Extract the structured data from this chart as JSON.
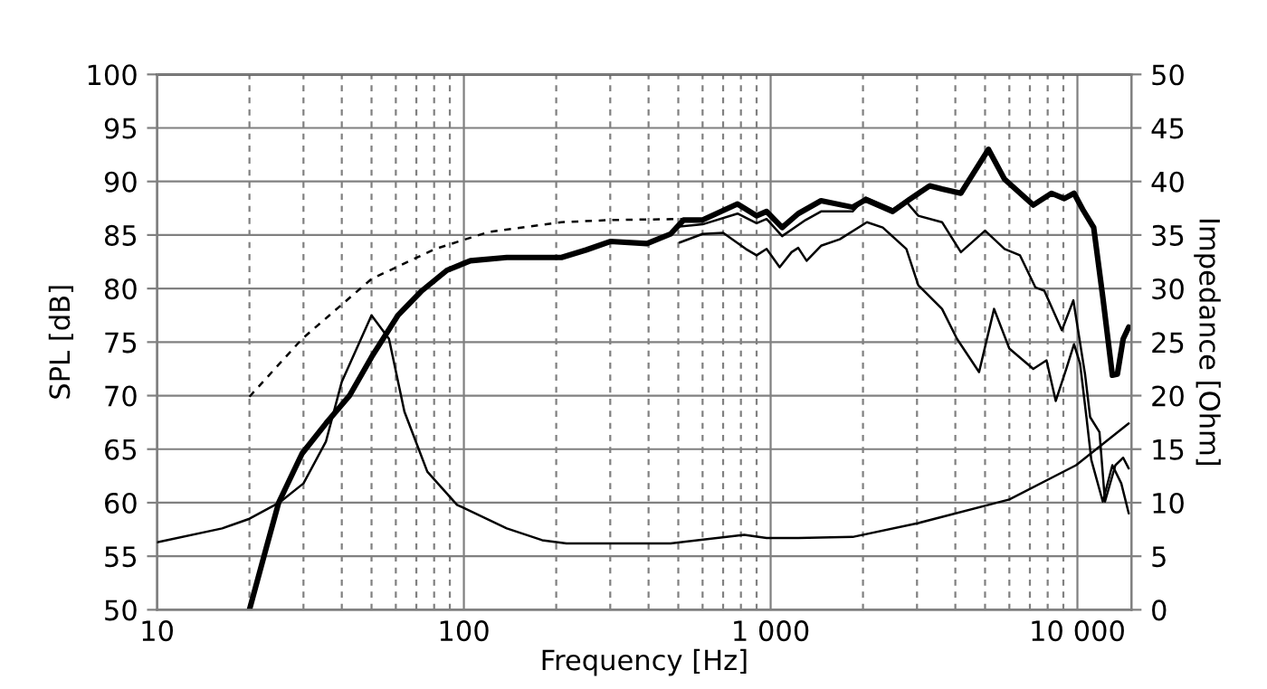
{
  "chart_data": {
    "type": "line",
    "xlabel": "Frequency [Hz]",
    "ylabel": "SPL [dB]",
    "y2label": "Impedance [Ohm]",
    "log": "x",
    "grid": true,
    "xlim": [
      10,
      15000
    ],
    "xticks": [
      10,
      {
        "value": 20,
        "label": null
      },
      {
        "value": 30,
        "label": null
      },
      {
        "value": 40,
        "label": null
      },
      {
        "value": 50,
        "label": null
      },
      {
        "value": 60,
        "label": null
      },
      {
        "value": 70,
        "label": null
      },
      {
        "value": 80,
        "label": null
      },
      {
        "value": 90,
        "label": null
      },
      100,
      {
        "value": 200,
        "label": null
      },
      {
        "value": 300,
        "label": null
      },
      {
        "value": 400,
        "label": null
      },
      {
        "value": 500,
        "label": null
      },
      {
        "value": 600,
        "label": null
      },
      {
        "value": 700,
        "label": null
      },
      {
        "value": 800,
        "label": null
      },
      {
        "value": 900,
        "label": null
      },
      {
        "value": 1000,
        "label": "1 000"
      },
      {
        "value": 2000,
        "label": null
      },
      {
        "value": 3000,
        "label": null
      },
      {
        "value": 4000,
        "label": null
      },
      {
        "value": 5000,
        "label": null
      },
      {
        "value": 6000,
        "label": null
      },
      {
        "value": 7000,
        "label": null
      },
      {
        "value": 8000,
        "label": null
      },
      {
        "value": 9000,
        "label": null
      },
      {
        "value": 10000,
        "label": "10 000"
      }
    ],
    "ylim": [
      50,
      100
    ],
    "yticks": [
      50,
      55,
      60,
      65,
      70,
      75,
      80,
      85,
      90,
      95,
      100
    ],
    "y2lim": [
      0,
      50
    ],
    "y2ticks": [
      0,
      5,
      10,
      15,
      20,
      25,
      30,
      35,
      40,
      45,
      50
    ],
    "series": [
      {
        "color": "#000000",
        "x": [
          20,
          22.6,
          24.9,
          29.7,
          35.5,
          42.4,
          50,
          61,
          73,
          88,
          105,
          138,
          208,
          250,
          300,
          395,
          472,
          520,
          600,
          780,
          900,
          970,
          1090,
          1230,
          1460,
          1850,
          2040,
          2500,
          2830,
          3300,
          3620,
          4170,
          5130,
          5790,
          7180,
          8230,
          9060,
          9750,
          10400,
          11300,
          12100,
          13000,
          13500,
          14100,
          14700
        ],
        "values": [
          50,
          55.6,
          60,
          64.6,
          67.4,
          70,
          73.6,
          77.5,
          79.8,
          81.7,
          82.6,
          82.9,
          82.9,
          83.6,
          84.4,
          84.2,
          85.1,
          86.4,
          86.4,
          87.9,
          86.8,
          87.2,
          85.7,
          87,
          88.2,
          87.6,
          88.3,
          87.2,
          88.3,
          89.6,
          89.3,
          88.9,
          93,
          90.2,
          87.8,
          88.9,
          88.4,
          88.9,
          87.4,
          85.7,
          79.2,
          71.9,
          72,
          75.3,
          76.4
        ]
      },
      {
        "color": "#000000",
        "x": [
          505,
          600,
          780,
          900,
          970,
          1090,
          1300,
          1460,
          1850,
          2040,
          2500,
          2750,
          3030,
          3620,
          4170,
          5000,
          5790,
          6500,
          7300,
          7800,
          8900,
          9700,
          10600,
          11000,
          11800,
          12300,
          13300,
          14100,
          14700
        ],
        "values": [
          85.8,
          86,
          87,
          86.1,
          86.5,
          84.9,
          86.4,
          87.2,
          87.2,
          88.5,
          87.4,
          88.2,
          86.8,
          86.2,
          83.4,
          85.4,
          83.7,
          83.1,
          80.1,
          79.8,
          76.1,
          78.9,
          71.9,
          68,
          66.6,
          60.1,
          63.5,
          64.2,
          63.2
        ]
      },
      {
        "color": "#000000",
        "x": [
          505,
          600,
          700,
          830,
          900,
          970,
          1070,
          1170,
          1230,
          1310,
          1460,
          1680,
          2060,
          2320,
          2770,
          3030,
          3620,
          4050,
          4780,
          5350,
          6000,
          7180,
          7930,
          8500,
          9200,
          9750,
          10200,
          10700,
          11100,
          12100,
          13000,
          13900,
          14700
        ],
        "values": [
          84.3,
          85.1,
          85.2,
          83.7,
          83.1,
          83.7,
          82,
          83.4,
          83.8,
          82.6,
          84,
          84.6,
          86.2,
          85.7,
          83.7,
          80.3,
          78.1,
          75.3,
          72.2,
          78.1,
          74.4,
          72.5,
          73.3,
          69.5,
          72.5,
          74.8,
          73,
          68,
          64,
          60.1,
          63.5,
          61.8,
          59
        ]
      },
      {
        "color": "#000000",
        "line_style": "dashed",
        "x": [
          20,
          29.7,
          50,
          80.6,
          121,
          208,
          300,
          520
        ],
        "values": [
          69.9,
          75.3,
          80.9,
          83.7,
          85.3,
          86.2,
          86.4,
          86.5
        ]
      },
      {
        "color": "#000000",
        "axis": "y2",
        "x": [
          10,
          16.3,
          20,
          25,
          30,
          35.5,
          40,
          50,
          57,
          64,
          76,
          95,
          138,
          180,
          216,
          472,
          820,
          970,
          1230,
          1850,
          3030,
          6000,
          9900,
          14700
        ],
        "values": [
          6.3,
          7.6,
          8.5,
          10,
          11.8,
          15.7,
          21.3,
          27.5,
          25.3,
          18.5,
          12.9,
          9.8,
          7.6,
          6.5,
          6.2,
          6.2,
          7,
          6.7,
          6.7,
          6.8,
          8.1,
          10.3,
          13.5,
          17.4
        ]
      }
    ]
  }
}
